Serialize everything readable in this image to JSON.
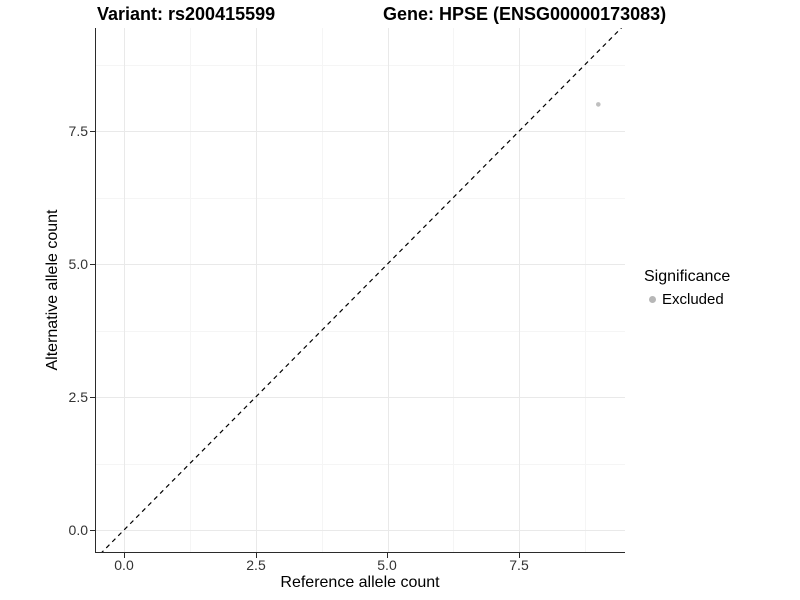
{
  "header": {
    "title_left": "Variant: rs200415599",
    "title_right": "Gene: HPSE (ENSG00000173083)"
  },
  "axes": {
    "x": {
      "label": "Reference allele count",
      "ticks": [
        "0.0",
        "2.5",
        "5.0",
        "7.5"
      ]
    },
    "y": {
      "label": "Alternative allele count",
      "ticks": [
        "7.5",
        "5.0",
        "2.5",
        "0.0"
      ]
    }
  },
  "legend": {
    "title": "Significance",
    "items": [
      {
        "label": "Excluded",
        "color": "#b7b7b7",
        "marker": "circle"
      }
    ]
  },
  "chart_data": {
    "type": "scatter",
    "title_left": "Variant: rs200415599",
    "title_right": "Gene: HPSE (ENSG00000173083)",
    "xlabel": "Reference allele count",
    "ylabel": "Alternative allele count",
    "xlim": [
      -0.45,
      9.45
    ],
    "ylim": [
      -0.45,
      9.45
    ],
    "x_ticks": [
      0.0,
      2.5,
      5.0,
      7.5
    ],
    "y_ticks": [
      0.0,
      2.5,
      5.0,
      7.5
    ],
    "grid": "major and minor, light gray on white",
    "grid_major_color": "#e9e9e9",
    "grid_minor_color": "#f5f5f5",
    "points": [
      {
        "x": 9,
        "y": 8,
        "series": "Excluded",
        "color": "#bfbfbf",
        "size": 2.3
      }
    ],
    "reference_line": {
      "equation": "y = x",
      "style": "dashed",
      "color": "#000000"
    },
    "legend": {
      "title": "Significance",
      "position": "right",
      "entries": [
        "Excluded"
      ]
    }
  }
}
